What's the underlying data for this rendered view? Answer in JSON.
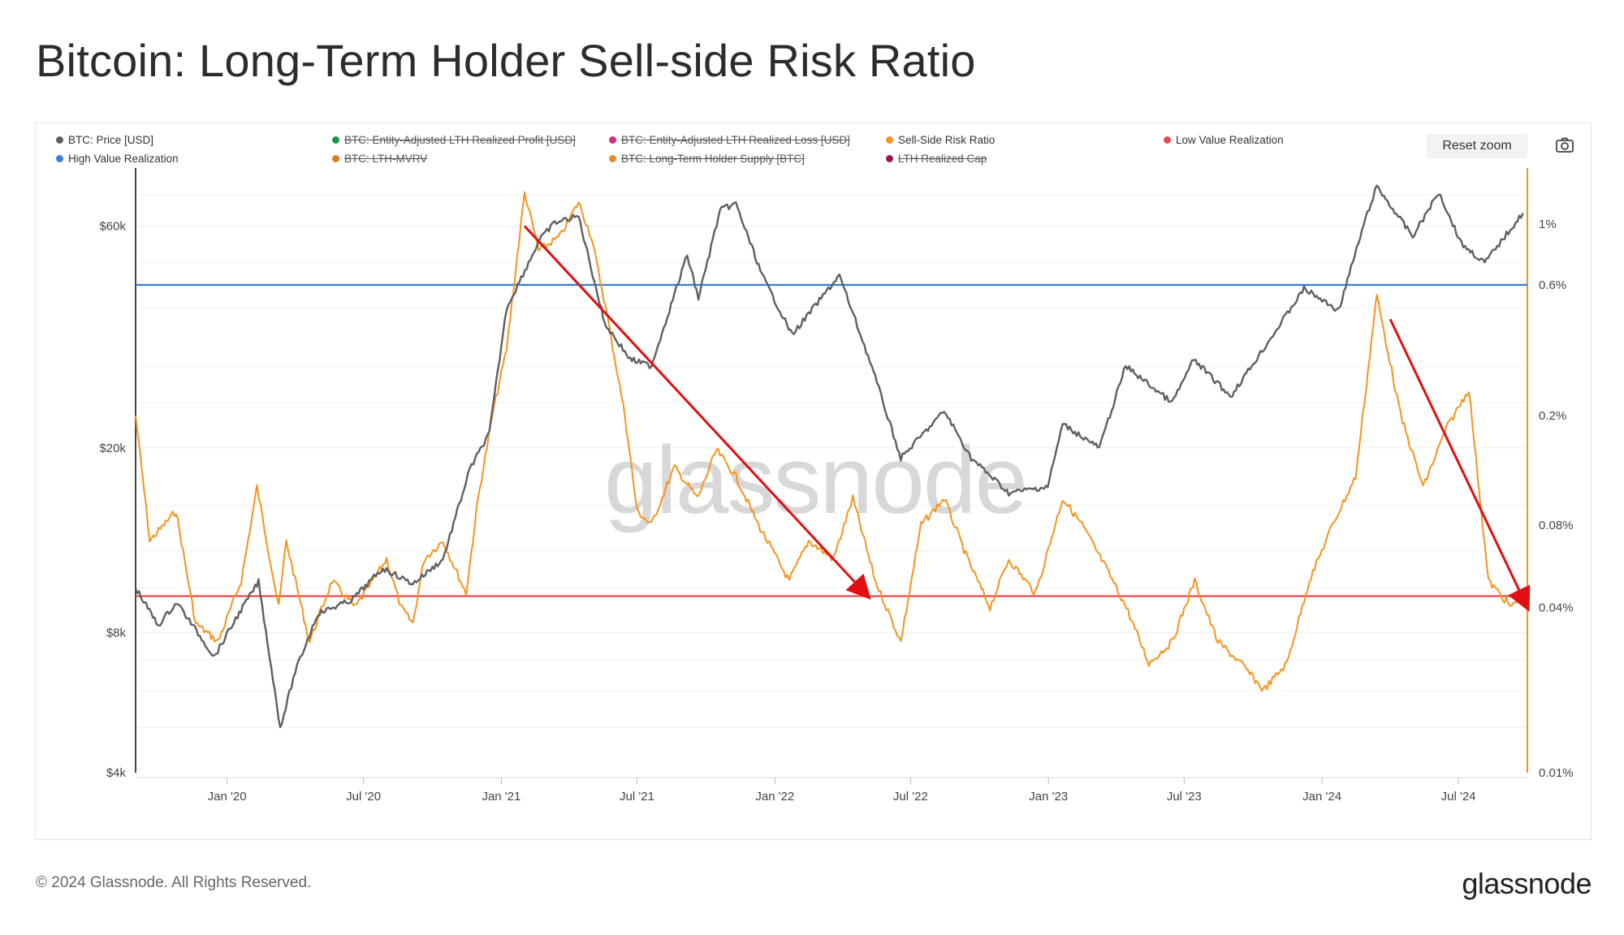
{
  "title": "Bitcoin: Long-Term Holder Sell-side Risk Ratio",
  "toolbar": {
    "reset_label": "Reset zoom",
    "camera_icon": "camera-icon"
  },
  "legend": [
    {
      "label": "BTC: Price [USD]",
      "color": "#5f5f5f",
      "active": true
    },
    {
      "label": "BTC: Entity-Adjusted LTH Realized Profit [USD]",
      "color": "#1a9641",
      "active": false
    },
    {
      "label": "BTC: Entity-Adjusted LTH Realized Loss [USD]",
      "color": "#d6307f",
      "active": false
    },
    {
      "label": "Sell-Side Risk Ratio",
      "color": "#f7931a",
      "active": true
    },
    {
      "label": "Low Value Realization",
      "color": "#e8474f",
      "active": true
    },
    {
      "label": "High Value Realization",
      "color": "#3a7bd5",
      "active": true
    },
    {
      "label": "BTC: LTH-MVRV",
      "color": "#e07b1a",
      "active": false
    },
    {
      "label": "BTC: Long-Term Holder Supply [BTC]",
      "color": "#e8892b",
      "active": false
    },
    {
      "label": "LTH Realized Cap",
      "color": "#a3114e",
      "active": false
    }
  ],
  "watermark": "glassnode",
  "footer": {
    "copyright": "© 2024 Glassnode. All Rights Reserved.",
    "logo_text": "glassnode"
  },
  "chart_data": {
    "type": "line",
    "x_ticks": [
      "Jan '20",
      "Jul '20",
      "Jan '21",
      "Jul '21",
      "Jan '22",
      "Jul '22",
      "Jan '23",
      "Jul '23",
      "Jan '24",
      "Jul '24"
    ],
    "x_range": [
      "2019-09-01",
      "2024-10-01"
    ],
    "y_left": {
      "scale": "log",
      "ticks": [
        "$4k",
        "$8k",
        "$20k",
        "$60k"
      ],
      "tick_values": [
        4000,
        8000,
        20000,
        60000
      ],
      "range": [
        4000,
        80000
      ]
    },
    "y_right": {
      "scale": "log",
      "ticks": [
        "0.01%",
        "0.04%",
        "0.08%",
        "0.2%",
        "0.6%",
        "1%"
      ],
      "tick_values": [
        0.01,
        0.04,
        0.08,
        0.2,
        0.6,
        1.0
      ],
      "range": [
        0.01,
        1.6
      ]
    },
    "series": [
      {
        "name": "BTC: Price [USD]",
        "axis": "left",
        "color": "#5f5f5f",
        "points": [
          [
            "2019-09-01",
            10000
          ],
          [
            "2019-10-01",
            8300
          ],
          [
            "2019-10-26",
            9300
          ],
          [
            "2019-12-15",
            7100
          ],
          [
            "2020-01-15",
            8700
          ],
          [
            "2020-02-12",
            10300
          ],
          [
            "2020-03-12",
            5000
          ],
          [
            "2020-04-01",
            6600
          ],
          [
            "2020-05-01",
            8800
          ],
          [
            "2020-06-15",
            9400
          ],
          [
            "2020-07-27",
            11000
          ],
          [
            "2020-09-05",
            10200
          ],
          [
            "2020-10-15",
            11500
          ],
          [
            "2020-11-20",
            18000
          ],
          [
            "2020-12-16",
            21500
          ],
          [
            "2021-01-08",
            40000
          ],
          [
            "2021-02-21",
            56000
          ],
          [
            "2021-03-13",
            61000
          ],
          [
            "2021-04-14",
            63000
          ],
          [
            "2021-05-19",
            37000
          ],
          [
            "2021-06-22",
            31000
          ],
          [
            "2021-07-20",
            30000
          ],
          [
            "2021-09-06",
            52000
          ],
          [
            "2021-09-21",
            42000
          ],
          [
            "2021-10-20",
            65000
          ],
          [
            "2021-11-10",
            67000
          ],
          [
            "2021-12-15",
            47000
          ],
          [
            "2022-01-24",
            35000
          ],
          [
            "2022-03-28",
            47000
          ],
          [
            "2022-05-10",
            30000
          ],
          [
            "2022-06-18",
            19000
          ],
          [
            "2022-08-15",
            24000
          ],
          [
            "2022-09-20",
            19000
          ],
          [
            "2022-11-09",
            16000
          ],
          [
            "2022-12-31",
            16500
          ],
          [
            "2023-01-20",
            22500
          ],
          [
            "2023-03-10",
            20000
          ],
          [
            "2023-04-14",
            30000
          ],
          [
            "2023-06-15",
            25000
          ],
          [
            "2023-07-14",
            31000
          ],
          [
            "2023-09-01",
            25800
          ],
          [
            "2023-10-25",
            34500
          ],
          [
            "2023-12-08",
            44000
          ],
          [
            "2024-01-23",
            39500
          ],
          [
            "2024-02-28",
            62000
          ],
          [
            "2024-03-14",
            73000
          ],
          [
            "2024-05-01",
            57000
          ],
          [
            "2024-06-05",
            71000
          ],
          [
            "2024-07-05",
            55000
          ],
          [
            "2024-08-05",
            50000
          ],
          [
            "2024-09-25",
            64000
          ]
        ]
      },
      {
        "name": "Sell-Side Risk Ratio",
        "axis": "right",
        "color": "#f7931a",
        "points": [
          [
            "2019-09-01",
            0.2
          ],
          [
            "2019-09-20",
            0.07
          ],
          [
            "2019-10-25",
            0.09
          ],
          [
            "2019-11-20",
            0.035
          ],
          [
            "2019-12-20",
            0.03
          ],
          [
            "2020-01-20",
            0.05
          ],
          [
            "2020-02-10",
            0.11
          ],
          [
            "2020-03-10",
            0.04
          ],
          [
            "2020-03-20",
            0.07
          ],
          [
            "2020-04-20",
            0.03
          ],
          [
            "2020-05-20",
            0.05
          ],
          [
            "2020-06-20",
            0.04
          ],
          [
            "2020-08-01",
            0.06
          ],
          [
            "2020-08-20",
            0.04
          ],
          [
            "2020-09-05",
            0.035
          ],
          [
            "2020-09-20",
            0.06
          ],
          [
            "2020-10-15",
            0.07
          ],
          [
            "2020-11-15",
            0.045
          ],
          [
            "2020-12-01",
            0.1
          ],
          [
            "2020-12-20",
            0.2
          ],
          [
            "2021-01-08",
            0.35
          ],
          [
            "2021-02-01",
            1.3
          ],
          [
            "2021-02-20",
            0.8
          ],
          [
            "2021-03-20",
            0.9
          ],
          [
            "2021-04-14",
            1.2
          ],
          [
            "2021-05-01",
            0.9
          ],
          [
            "2021-05-20",
            0.5
          ],
          [
            "2021-06-15",
            0.2
          ],
          [
            "2021-07-01",
            0.09
          ],
          [
            "2021-07-20",
            0.08
          ],
          [
            "2021-08-20",
            0.13
          ],
          [
            "2021-09-20",
            0.1
          ],
          [
            "2021-10-15",
            0.15
          ],
          [
            "2021-11-10",
            0.12
          ],
          [
            "2021-12-10",
            0.08
          ],
          [
            "2022-01-20",
            0.05
          ],
          [
            "2022-02-15",
            0.07
          ],
          [
            "2022-03-20",
            0.06
          ],
          [
            "2022-04-15",
            0.1
          ],
          [
            "2022-05-15",
            0.05
          ],
          [
            "2022-06-18",
            0.03
          ],
          [
            "2022-07-15",
            0.08
          ],
          [
            "2022-08-15",
            0.1
          ],
          [
            "2022-09-15",
            0.06
          ],
          [
            "2022-10-15",
            0.04
          ],
          [
            "2022-11-09",
            0.06
          ],
          [
            "2022-12-15",
            0.045
          ],
          [
            "2023-01-20",
            0.1
          ],
          [
            "2023-02-15",
            0.08
          ],
          [
            "2023-03-20",
            0.055
          ],
          [
            "2023-04-15",
            0.04
          ],
          [
            "2023-05-15",
            0.025
          ],
          [
            "2023-06-15",
            0.03
          ],
          [
            "2023-07-15",
            0.05
          ],
          [
            "2023-08-15",
            0.03
          ],
          [
            "2023-09-15",
            0.025
          ],
          [
            "2023-10-15",
            0.02
          ],
          [
            "2023-11-15",
            0.025
          ],
          [
            "2023-12-15",
            0.05
          ],
          [
            "2024-01-15",
            0.08
          ],
          [
            "2024-02-15",
            0.12
          ],
          [
            "2024-03-14",
            0.55
          ],
          [
            "2024-04-15",
            0.2
          ],
          [
            "2024-05-15",
            0.11
          ],
          [
            "2024-06-15",
            0.18
          ],
          [
            "2024-07-15",
            0.25
          ],
          [
            "2024-08-10",
            0.05
          ],
          [
            "2024-09-10",
            0.04
          ],
          [
            "2024-09-25",
            0.045
          ]
        ]
      },
      {
        "name": "High Value Realization",
        "axis": "right",
        "color": "#3a7bd5",
        "y": 0.6
      },
      {
        "name": "Low Value Realization",
        "axis": "right",
        "color": "#e8474f",
        "y": 0.044
      }
    ],
    "annotations": [
      {
        "type": "arrow",
        "color": "#e01010",
        "from": [
          "2021-02-01",
          60000
        ],
        "to": [
          "2022-05-05",
          0.044
        ]
      },
      {
        "type": "arrow",
        "color": "#e01010",
        "from": [
          "2024-04-01",
          0.45
        ],
        "to": [
          "2024-10-01",
          0.04
        ]
      }
    ]
  }
}
